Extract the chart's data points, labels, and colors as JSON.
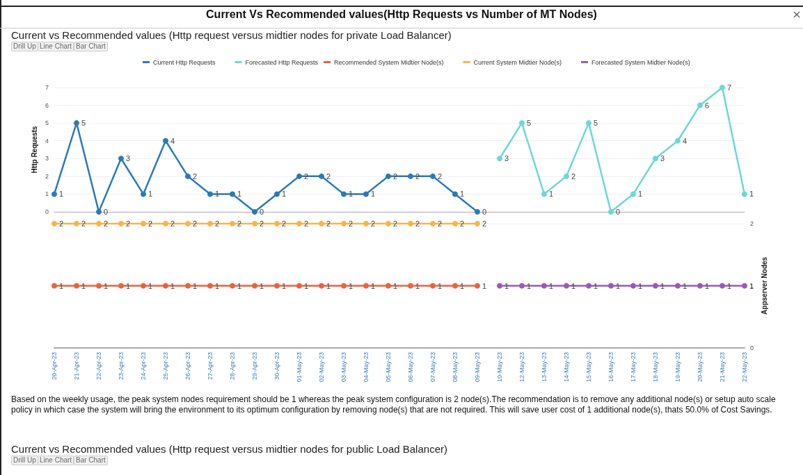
{
  "chart_data": [
    {
      "type": "line",
      "title": "Current Vs Recommended values(Http Requests vs Number of MT Nodes)",
      "subtitle": "Current vs Recommended values (Http request versus midtier nodes for private Load Balancer)",
      "ylabel": "Http Requests",
      "categories": [
        null,
        null,
        null,
        null,
        null,
        null,
        null,
        null,
        null,
        null,
        null,
        null,
        null,
        null,
        null,
        null,
        null,
        null,
        null,
        null,
        null,
        null,
        null,
        null,
        null,
        null,
        null,
        null,
        null,
        null,
        null,
        null
      ],
      "series": [
        {
          "name": "Current Http Requests",
          "color": "#2a7ab8",
          "values": [
            1,
            5,
            0,
            3,
            1,
            4,
            2,
            1,
            1,
            0,
            1,
            2,
            2,
            1,
            1,
            2,
            2,
            2,
            1,
            0,
            null,
            null,
            null,
            null,
            null,
            null,
            null,
            null,
            null,
            null,
            null,
            null
          ]
        },
        {
          "name": "Forecasted Http Requests",
          "color": "#6ad8d8",
          "values": [
            null,
            null,
            null,
            null,
            null,
            null,
            null,
            null,
            null,
            null,
            null,
            null,
            null,
            null,
            null,
            null,
            null,
            null,
            null,
            null,
            3,
            5,
            1,
            2,
            5,
            0,
            1,
            3,
            4,
            6,
            7,
            1
          ]
        }
      ],
      "ylim": [
        0,
        7
      ],
      "yticks": [
        0,
        1,
        2,
        3,
        4,
        5,
        6,
        7
      ],
      "tick_labels": "y",
      "grid": "y",
      "legend": "top",
      "marker": "circle",
      "line_style": "solid",
      "data_labels": true
    },
    {
      "type": "line",
      "y2label": "Appserver Nodes",
      "categories": [
        "20-Apr-23",
        "21-Apr-23",
        "22-Apr-23",
        "23-Apr-23",
        "24-Apr-23",
        "25-Apr-23",
        "26-Apr-23",
        "27-Apr-23",
        "28-Apr-23",
        "29-Apr-23",
        "30-Apr-23",
        "01-May-23",
        "02-May-23",
        "03-May-23",
        "04-May-23",
        "05-May-23",
        "06-May-23",
        "07-May-23",
        "08-May-23",
        "09-May-23",
        "10-May-23",
        "12-May-23",
        "13-May-23",
        "14-May-23",
        "15-May-23",
        "16-May-23",
        "17-May-23",
        "18-May-23",
        "19-May-23",
        "20-May-23",
        "21-May-23",
        "22-May-23"
      ],
      "series": [
        {
          "name": "Recommended System Midtier Node(s)",
          "color": "#ea633f",
          "axis": "y2",
          "values": [
            1,
            1,
            1,
            1,
            1,
            1,
            1,
            1,
            1,
            1,
            1,
            1,
            1,
            1,
            1,
            1,
            1,
            1,
            1,
            1,
            null,
            null,
            null,
            null,
            null,
            null,
            null,
            null,
            null,
            null,
            null,
            null
          ]
        },
        {
          "name": "Current System Midtier Node(s)",
          "color": "#fbb24a",
          "axis": "y2",
          "values": [
            2,
            2,
            2,
            2,
            2,
            2,
            2,
            2,
            2,
            2,
            2,
            2,
            2,
            2,
            2,
            2,
            2,
            2,
            2,
            2,
            null,
            null,
            null,
            null,
            null,
            null,
            null,
            null,
            null,
            null,
            null,
            null
          ]
        },
        {
          "name": "Forecasted System Midtier Node(s)",
          "color": "#9b59b6",
          "axis": "y2",
          "values": [
            null,
            null,
            null,
            null,
            null,
            null,
            null,
            null,
            null,
            null,
            null,
            null,
            null,
            null,
            null,
            null,
            null,
            null,
            null,
            null,
            1,
            1,
            1,
            1,
            1,
            1,
            1,
            1,
            1,
            1,
            1,
            1
          ]
        }
      ],
      "y2lim": [
        0,
        2
      ],
      "y2ticks": [
        0,
        1,
        2
      ],
      "grid": "y",
      "legend": "top",
      "marker": "circle",
      "line_style": "solid",
      "data_labels": true,
      "annotations": [
        "Drill Up",
        "Line Chart",
        "Bar Chart",
        "Based on the weekly usage, the peak system nodes requirement should be 1 whereas the peak system configuration is 2 node(s).The recommendation is to remove any additional node(s) or setup auto scale policy in which case the system will bring the environment to its optimum configuration by removing node(s) that are not required. This will save user cost of 1 additional node(s), thats 50.0% of Cost Savings.",
        "Current vs Recommended values (Http request versus midtier nodes for public Load Balancer)",
        "Drill Up",
        "Line Chart",
        "Bar Chart"
      ]
    }
  ]
}
